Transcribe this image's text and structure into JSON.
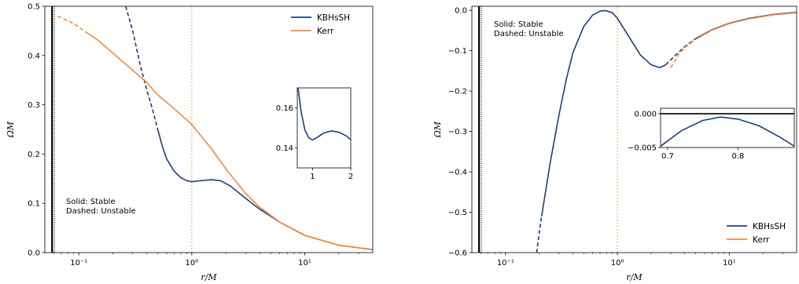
{
  "colors": {
    "kbhssh": "#1f3f7a",
    "kerr": "#f28a3c",
    "vline": "#f28a3c",
    "axis": "#000000"
  },
  "chart_data": [
    {
      "type": "line",
      "panel": "left",
      "xlabel": "r/M",
      "ylabel": "ΩM",
      "xscale": "log",
      "xlim": [
        0.05,
        40
      ],
      "ylim": [
        0,
        0.5
      ],
      "xticks": [
        {
          "v": 0.1,
          "label": "10⁻¹"
        },
        {
          "v": 1,
          "label": "10⁰"
        },
        {
          "v": 10,
          "label": "10¹"
        }
      ],
      "yticks": [
        {
          "v": 0,
          "label": "0.0"
        },
        {
          "v": 0.1,
          "label": "0.1"
        },
        {
          "v": 0.2,
          "label": "0.2"
        },
        {
          "v": 0.3,
          "label": "0.3"
        },
        {
          "v": 0.4,
          "label": "0.4"
        },
        {
          "v": 0.5,
          "label": "0.5"
        }
      ],
      "vertical_lines": [
        {
          "x": 0.058,
          "style": "solid-thick",
          "color": "#000000"
        },
        {
          "x": 1.0,
          "style": "dotted",
          "color": "#f28a3c"
        }
      ],
      "legend": {
        "position": "top-right",
        "entries": [
          "KBHsSH",
          "Kerr"
        ]
      },
      "annotation": [
        "Solid: Stable",
        "Dashed: Unstable"
      ],
      "series": [
        {
          "name": "KBHsSH",
          "color": "#1f3f7a",
          "segments": [
            {
              "style": "dashed",
              "points": [
                [
                  0.26,
                  0.5
                ],
                [
                  0.3,
                  0.45
                ],
                [
                  0.35,
                  0.38
                ],
                [
                  0.4,
                  0.33
                ],
                [
                  0.45,
                  0.29
                ],
                [
                  0.5,
                  0.25
                ]
              ]
            },
            {
              "style": "solid",
              "points": [
                [
                  0.5,
                  0.25
                ],
                [
                  0.55,
                  0.215
                ],
                [
                  0.6,
                  0.19
                ],
                [
                  0.7,
                  0.165
                ],
                [
                  0.8,
                  0.152
                ],
                [
                  0.9,
                  0.146
                ],
                [
                  1.0,
                  0.144
                ],
                [
                  1.2,
                  0.146
                ],
                [
                  1.5,
                  0.148
                ],
                [
                  1.8,
                  0.146
                ],
                [
                  2.2,
                  0.135
                ],
                [
                  3,
                  0.11
                ],
                [
                  4,
                  0.088
                ],
                [
                  6,
                  0.062
                ],
                [
                  10,
                  0.035
                ],
                [
                  20,
                  0.015
                ],
                [
                  40,
                  0.006
                ]
              ]
            }
          ]
        },
        {
          "name": "Kerr",
          "color": "#f28a3c",
          "segments": [
            {
              "style": "dashed",
              "points": [
                [
                  0.065,
                  0.48
                ],
                [
                  0.09,
                  0.465
                ],
                [
                  0.12,
                  0.445
                ]
              ]
            },
            {
              "style": "solid",
              "points": [
                [
                  0.12,
                  0.445
                ],
                [
                  0.15,
                  0.43
                ],
                [
                  0.2,
                  0.405
                ],
                [
                  0.3,
                  0.37
                ],
                [
                  0.4,
                  0.345
                ],
                [
                  0.5,
                  0.32
                ],
                [
                  0.6,
                  0.305
                ],
                [
                  0.8,
                  0.28
                ],
                [
                  1.0,
                  0.26
                ],
                [
                  1.5,
                  0.21
                ],
                [
                  2,
                  0.17
                ],
                [
                  3,
                  0.12
                ],
                [
                  4,
                  0.092
                ],
                [
                  6,
                  0.062
                ],
                [
                  10,
                  0.035
                ],
                [
                  20,
                  0.015
                ],
                [
                  40,
                  0.006
                ]
              ]
            }
          ]
        }
      ],
      "inset": {
        "xlim": [
          0.6,
          2.0
        ],
        "ylim": [
          0.13,
          0.17
        ],
        "xticks": [
          {
            "v": 1,
            "label": "1"
          },
          {
            "v": 2,
            "label": "2"
          }
        ],
        "yticks": [
          {
            "v": 0.14,
            "label": "0.14"
          },
          {
            "v": 0.16,
            "label": "0.16"
          }
        ],
        "series": [
          {
            "name": "KBHsSH",
            "color": "#1f3f7a",
            "points": [
              [
                0.62,
                0.17
              ],
              [
                0.7,
                0.158
              ],
              [
                0.8,
                0.149
              ],
              [
                0.9,
                0.145
              ],
              [
                1.0,
                0.144
              ],
              [
                1.1,
                0.145
              ],
              [
                1.3,
                0.1475
              ],
              [
                1.5,
                0.1485
              ],
              [
                1.7,
                0.1478
              ],
              [
                1.9,
                0.1458
              ],
              [
                2.0,
                0.144
              ]
            ]
          }
        ]
      }
    },
    {
      "type": "line",
      "panel": "right",
      "xlabel": "r/M",
      "ylabel": "ΩM",
      "xscale": "log",
      "xlim": [
        0.05,
        40
      ],
      "ylim": [
        -0.6,
        0.01
      ],
      "xticks": [
        {
          "v": 0.1,
          "label": "10⁻¹"
        },
        {
          "v": 1,
          "label": "10⁰"
        },
        {
          "v": 10,
          "label": "10¹"
        }
      ],
      "yticks": [
        {
          "v": 0,
          "label": "0.0"
        },
        {
          "v": -0.1,
          "label": "−0.1"
        },
        {
          "v": -0.2,
          "label": "−0.2"
        },
        {
          "v": -0.3,
          "label": "−0.3"
        },
        {
          "v": -0.4,
          "label": "−0.4"
        },
        {
          "v": -0.5,
          "label": "−0.5"
        },
        {
          "v": -0.6,
          "label": "−0.6"
        }
      ],
      "vertical_lines": [
        {
          "x": 0.058,
          "style": "solid-thick",
          "color": "#000000"
        },
        {
          "x": 1.0,
          "style": "dotted",
          "color": "#f28a3c"
        }
      ],
      "legend": {
        "position": "bottom-right",
        "entries": [
          "KBHsSH",
          "Kerr"
        ]
      },
      "annotation": [
        "Solid: Stable",
        "Dashed: Unstable"
      ],
      "series": [
        {
          "name": "KBHsSH",
          "color": "#1f3f7a",
          "segments": [
            {
              "style": "dashed",
              "points": [
                [
                  0.19,
                  -0.6
                ],
                [
                  0.2,
                  -0.55
                ],
                [
                  0.21,
                  -0.51
                ]
              ]
            },
            {
              "style": "solid",
              "points": [
                [
                  0.21,
                  -0.51
                ],
                [
                  0.25,
                  -0.38
                ],
                [
                  0.3,
                  -0.26
                ],
                [
                  0.35,
                  -0.17
                ],
                [
                  0.4,
                  -0.105
                ],
                [
                  0.5,
                  -0.04
                ],
                [
                  0.6,
                  -0.012
                ],
                [
                  0.7,
                  -0.002
                ],
                [
                  0.78,
                  -0.0005
                ],
                [
                  0.9,
                  -0.006
                ],
                [
                  1.0,
                  -0.02
                ],
                [
                  1.3,
                  -0.07
                ],
                [
                  1.6,
                  -0.11
                ],
                [
                  2.0,
                  -0.135
                ],
                [
                  2.4,
                  -0.142
                ],
                [
                  2.7,
                  -0.135
                ]
              ]
            },
            {
              "style": "dashed",
              "points": [
                [
                  2.7,
                  -0.135
                ],
                [
                  3.2,
                  -0.115
                ],
                [
                  4,
                  -0.09
                ],
                [
                  5,
                  -0.07
                ]
              ]
            },
            {
              "style": "solid",
              "points": [
                [
                  5,
                  -0.07
                ],
                [
                  7,
                  -0.048
                ],
                [
                  10,
                  -0.032
                ],
                [
                  15,
                  -0.02
                ],
                [
                  25,
                  -0.01
                ],
                [
                  40,
                  -0.005
                ]
              ]
            }
          ]
        },
        {
          "name": "Kerr",
          "color": "#f28a3c",
          "segments": [
            {
              "style": "dashed",
              "points": [
                [
                  3.0,
                  -0.142
                ],
                [
                  3.5,
                  -0.11
                ],
                [
                  4,
                  -0.092
                ],
                [
                  5,
                  -0.072
                ]
              ]
            },
            {
              "style": "solid",
              "points": [
                [
                  5,
                  -0.072
                ],
                [
                  7,
                  -0.049
                ],
                [
                  10,
                  -0.033
                ],
                [
                  15,
                  -0.021
                ],
                [
                  25,
                  -0.011
                ],
                [
                  40,
                  -0.006
                ]
              ]
            }
          ]
        }
      ],
      "inset": {
        "xlim": [
          0.69,
          0.88
        ],
        "ylim": [
          -0.005,
          0.0008
        ],
        "xticks": [
          {
            "v": 0.7,
            "label": "0.7"
          },
          {
            "v": 0.8,
            "label": "0.8"
          }
        ],
        "yticks": [
          {
            "v": 0.0,
            "label": "0.000"
          },
          {
            "v": -0.005,
            "label": "−0.005"
          }
        ],
        "hline": 0.0,
        "series": [
          {
            "name": "KBHsSH",
            "color": "#1f3f7a",
            "points": [
              [
                0.69,
                -0.0048
              ],
              [
                0.72,
                -0.0025
              ],
              [
                0.75,
                -0.001
              ],
              [
                0.775,
                -0.0005
              ],
              [
                0.8,
                -0.0008
              ],
              [
                0.83,
                -0.0018
              ],
              [
                0.86,
                -0.0035
              ],
              [
                0.88,
                -0.0048
              ]
            ]
          }
        ]
      }
    }
  ]
}
